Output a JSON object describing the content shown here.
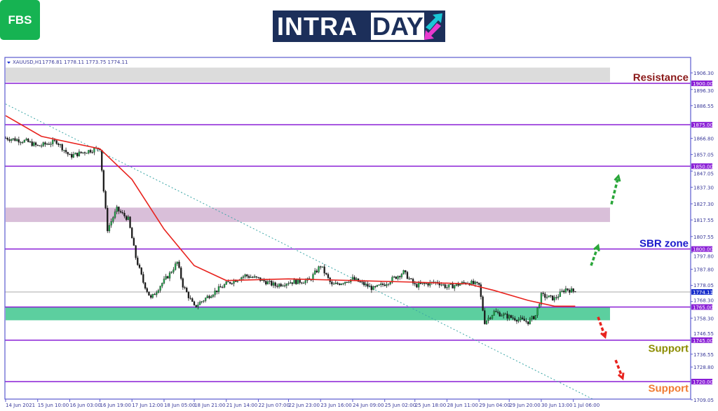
{
  "logos": {
    "fbs": "FBS",
    "intraday_left": "INTRA",
    "intraday_right": "DAY"
  },
  "header": {
    "symbol": "XAUUSD,H1",
    "ohlc": "1776.81 1778.11 1773.75 1774.11"
  },
  "colors": {
    "bull": "#1fa64a",
    "bear": "#1a1a1a",
    "ma": "#e8231e",
    "level": "#8a1fd6",
    "current": "#1a2fcc",
    "trend": "#3aa6a6",
    "frame": "#5a5acf"
  },
  "chart_data": {
    "type": "candlestick",
    "symbol": "XAUUSD",
    "timeframe": "H1",
    "ylim": [
      1709.05,
      1910
    ],
    "y_ticks": [
      "1906.30",
      "1896.30",
      "1886.55",
      "1866.80",
      "1857.05",
      "1847.05",
      "1837.30",
      "1827.30",
      "1817.55",
      "1807.55",
      "1797.80",
      "1787.80",
      "1778.05",
      "1768.30",
      "1758.30",
      "1746.55",
      "1736.55",
      "1728.80",
      "1709.05"
    ],
    "x_ticks": [
      "14 Jun 2021",
      "15 Jun 10:00",
      "16 Jun 03:00",
      "16 Jun 19:00",
      "17 Jun 12:00",
      "18 Jun 05:00",
      "18 Jun 21:00",
      "21 Jun 14:00",
      "22 Jun 07:00",
      "22 Jun 23:00",
      "23 Jun 16:00",
      "24 Jun 09:00",
      "25 Jun 02:00",
      "25 Jun 18:00",
      "28 Jun 11:00",
      "29 Jun 04:00",
      "29 Jun 20:00",
      "30 Jun 13:00",
      "1 Jul 06:00"
    ],
    "levels": [
      {
        "price": 1900,
        "label": "1900.00"
      },
      {
        "price": 1875,
        "label": "1875.00"
      },
      {
        "price": 1850,
        "label": "1850.00"
      },
      {
        "price": 1800,
        "label": "1800.00"
      },
      {
        "price": 1765,
        "label": "1765.00"
      },
      {
        "price": 1745,
        "label": "1745.00"
      },
      {
        "price": 1720,
        "label": "1720.00"
      }
    ],
    "current_price": {
      "price": 1774.11,
      "label": "1774.11"
    },
    "zones": [
      {
        "from": 1900.8,
        "to": 1909.5,
        "color": "#dcdcdc"
      },
      {
        "from": 1816.3,
        "to": 1825,
        "color": "#d9bfd9"
      },
      {
        "from": 1757,
        "to": 1765,
        "color": "#5ccf9f"
      }
    ],
    "trendline": {
      "start": [
        "14 Jun 17:00",
        1887.5
      ],
      "end": [
        "1 Jul 17:00",
        1709
      ]
    },
    "close_path": [
      [
        "14 Jun 17:00",
        1867
      ],
      [
        "15 Jun 04:00",
        1865
      ],
      [
        "15 Jun 10:00",
        1862
      ],
      [
        "15 Jun 20:00",
        1865
      ],
      [
        "16 Jun 03:00",
        1856
      ],
      [
        "16 Jun 12:00",
        1859
      ],
      [
        "16 Jun 19:00",
        1861
      ],
      [
        "16 Jun 21:00",
        1835
      ],
      [
        "16 Jun 23:00",
        1812
      ],
      [
        "17 Jun 04:00",
        1824
      ],
      [
        "17 Jun 10:00",
        1818
      ],
      [
        "17 Jun 14:00",
        1795
      ],
      [
        "17 Jun 18:00",
        1780
      ],
      [
        "17 Jun 22:00",
        1770
      ],
      [
        "18 Jun 03:00",
        1778
      ],
      [
        "18 Jun 08:00",
        1785
      ],
      [
        "18 Jun 12:00",
        1792
      ],
      [
        "18 Jun 15:00",
        1778
      ],
      [
        "18 Jun 21:00",
        1765
      ],
      [
        "21 Jun 05:00",
        1772
      ],
      [
        "21 Jun 14:00",
        1779
      ],
      [
        "22 Jun 00:00",
        1784
      ],
      [
        "22 Jun 07:00",
        1782
      ],
      [
        "22 Jun 16:00",
        1778
      ],
      [
        "22 Jun 23:00",
        1780
      ],
      [
        "23 Jun 10:00",
        1781
      ],
      [
        "23 Jun 16:00",
        1790
      ],
      [
        "23 Jun 22:00",
        1778
      ],
      [
        "24 Jun 09:00",
        1782
      ],
      [
        "24 Jun 20:00",
        1776
      ],
      [
        "25 Jun 02:00",
        1779
      ],
      [
        "25 Jun 12:00",
        1786
      ],
      [
        "25 Jun 18:00",
        1778
      ],
      [
        "28 Jun 06:00",
        1780
      ],
      [
        "28 Jun 11:00",
        1777
      ],
      [
        "28 Jun 22:00",
        1780
      ],
      [
        "29 Jun 04:00",
        1778
      ],
      [
        "29 Jun 07:00",
        1756
      ],
      [
        "29 Jun 12:00",
        1762
      ],
      [
        "29 Jun 20:00",
        1759
      ],
      [
        "30 Jun 06:00",
        1756
      ],
      [
        "30 Jun 10:00",
        1760
      ],
      [
        "30 Jun 13:00",
        1772
      ],
      [
        "30 Jun 20:00",
        1770
      ],
      [
        "1 Jul 02:00",
        1776
      ],
      [
        "1 Jul 07:00",
        1774.11
      ]
    ],
    "moving_average": [
      [
        "14 Jun 17:00",
        1880.5
      ],
      [
        "15 Jun 12:00",
        1868
      ],
      [
        "16 Jun 19:00",
        1860.5
      ],
      [
        "17 Jun 12:00",
        1842
      ],
      [
        "18 Jun 05:00",
        1812
      ],
      [
        "18 Jun 21:00",
        1790
      ],
      [
        "21 Jun 14:00",
        1781
      ],
      [
        "22 Jun 23:00",
        1782
      ],
      [
        "24 Jun 09:00",
        1781
      ],
      [
        "25 Jun 18:00",
        1780
      ],
      [
        "28 Jun 22:00",
        1779
      ],
      [
        "29 Jun 12:00",
        1775
      ],
      [
        "30 Jun 06:00",
        1769
      ],
      [
        "30 Jun 20:00",
        1765.5
      ],
      [
        "1 Jul 07:00",
        1765.5
      ]
    ],
    "annotations": [
      {
        "text": "Resistance",
        "price": 1903.5,
        "color": "#8b1a1a"
      },
      {
        "text": "SBR zone",
        "price": 1803.5,
        "color": "#1a1acc"
      },
      {
        "text": "Support",
        "price": 1740,
        "color": "#8c8c00"
      },
      {
        "text": "Support",
        "price": 1716,
        "color": "#f07a30"
      }
    ],
    "arrows": [
      {
        "direction": "up",
        "color": "#2aa63a",
        "from": 1790,
        "to": 1802
      },
      {
        "direction": "up",
        "color": "#2aa63a",
        "from": 1827,
        "to": 1844
      },
      {
        "direction": "down",
        "color": "#e8231e",
        "from": 1759,
        "to": 1747
      },
      {
        "direction": "down",
        "color": "#e8231e",
        "from": 1733,
        "to": 1722
      }
    ]
  }
}
